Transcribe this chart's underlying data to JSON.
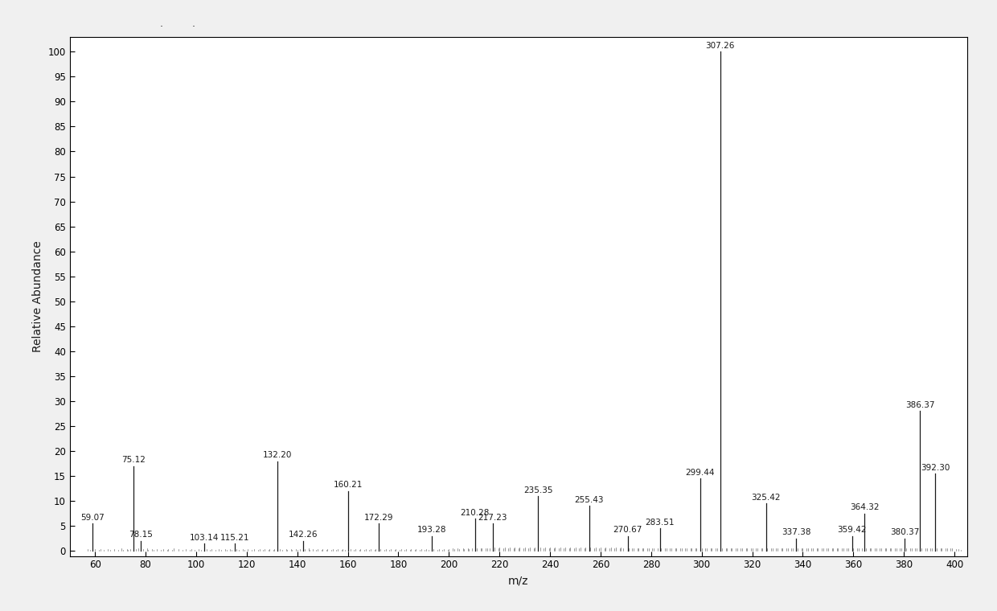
{
  "labeled_peaks": [
    {
      "mz": 59.07,
      "intensity": 5.5
    },
    {
      "mz": 75.12,
      "intensity": 17.0
    },
    {
      "mz": 78.15,
      "intensity": 2.0
    },
    {
      "mz": 103.14,
      "intensity": 1.5
    },
    {
      "mz": 115.21,
      "intensity": 1.5
    },
    {
      "mz": 132.2,
      "intensity": 18.0
    },
    {
      "mz": 142.26,
      "intensity": 2.0
    },
    {
      "mz": 160.21,
      "intensity": 12.0
    },
    {
      "mz": 172.29,
      "intensity": 5.5
    },
    {
      "mz": 193.28,
      "intensity": 3.0
    },
    {
      "mz": 210.28,
      "intensity": 6.5
    },
    {
      "mz": 217.23,
      "intensity": 5.5
    },
    {
      "mz": 235.35,
      "intensity": 11.0
    },
    {
      "mz": 255.43,
      "intensity": 9.0
    },
    {
      "mz": 270.67,
      "intensity": 3.0
    },
    {
      "mz": 283.51,
      "intensity": 4.5
    },
    {
      "mz": 299.44,
      "intensity": 14.5
    },
    {
      "mz": 307.26,
      "intensity": 100.0
    },
    {
      "mz": 325.42,
      "intensity": 9.5
    },
    {
      "mz": 337.38,
      "intensity": 2.5
    },
    {
      "mz": 359.42,
      "intensity": 3.0
    },
    {
      "mz": 364.32,
      "intensity": 7.5
    },
    {
      "mz": 380.37,
      "intensity": 2.5
    },
    {
      "mz": 386.37,
      "intensity": 28.0
    },
    {
      "mz": 392.3,
      "intensity": 15.5
    }
  ],
  "noise_peaks": [
    [
      57.0,
      0.4
    ],
    [
      58.0,
      0.3
    ],
    [
      60.0,
      0.4
    ],
    [
      61.5,
      0.3
    ],
    [
      62.0,
      0.4
    ],
    [
      63.5,
      0.3
    ],
    [
      65.0,
      0.4
    ],
    [
      66.0,
      0.3
    ],
    [
      67.5,
      0.4
    ],
    [
      69.0,
      0.3
    ],
    [
      70.5,
      0.5
    ],
    [
      71.0,
      0.3
    ],
    [
      72.5,
      0.4
    ],
    [
      73.0,
      0.3
    ],
    [
      74.0,
      0.4
    ],
    [
      76.0,
      0.4
    ],
    [
      77.0,
      0.5
    ],
    [
      79.0,
      0.4
    ],
    [
      80.5,
      0.5
    ],
    [
      81.0,
      0.3
    ],
    [
      82.5,
      0.4
    ],
    [
      83.0,
      0.3
    ],
    [
      84.5,
      0.4
    ],
    [
      86.0,
      0.3
    ],
    [
      87.0,
      0.4
    ],
    [
      88.5,
      0.3
    ],
    [
      89.0,
      0.4
    ],
    [
      90.5,
      0.3
    ],
    [
      91.0,
      0.5
    ],
    [
      93.0,
      0.4
    ],
    [
      94.5,
      0.3
    ],
    [
      96.0,
      0.4
    ],
    [
      97.5,
      0.3
    ],
    [
      98.0,
      0.4
    ],
    [
      99.5,
      0.3
    ],
    [
      101.0,
      0.4
    ],
    [
      102.0,
      0.3
    ],
    [
      104.0,
      0.4
    ],
    [
      105.5,
      0.3
    ],
    [
      106.0,
      0.4
    ],
    [
      107.5,
      0.3
    ],
    [
      109.0,
      0.4
    ],
    [
      110.0,
      0.3
    ],
    [
      111.5,
      0.4
    ],
    [
      112.0,
      0.3
    ],
    [
      113.5,
      0.4
    ],
    [
      114.0,
      0.3
    ],
    [
      116.0,
      0.4
    ],
    [
      117.0,
      0.3
    ],
    [
      118.5,
      0.4
    ],
    [
      119.0,
      0.3
    ],
    [
      120.5,
      0.4
    ],
    [
      122.0,
      0.3
    ],
    [
      123.0,
      0.4
    ],
    [
      124.5,
      0.3
    ],
    [
      125.0,
      0.4
    ],
    [
      126.5,
      0.3
    ],
    [
      127.0,
      0.4
    ],
    [
      128.5,
      0.3
    ],
    [
      129.0,
      0.4
    ],
    [
      130.5,
      0.3
    ],
    [
      131.0,
      0.4
    ],
    [
      133.0,
      0.4
    ],
    [
      134.0,
      0.3
    ],
    [
      135.5,
      0.4
    ],
    [
      136.0,
      0.3
    ],
    [
      137.5,
      0.4
    ],
    [
      138.0,
      0.3
    ],
    [
      139.5,
      0.4
    ],
    [
      140.0,
      0.3
    ],
    [
      141.0,
      0.4
    ],
    [
      143.0,
      0.4
    ],
    [
      144.5,
      0.5
    ],
    [
      145.0,
      0.3
    ],
    [
      146.0,
      0.4
    ],
    [
      147.5,
      0.3
    ],
    [
      148.0,
      0.4
    ],
    [
      149.5,
      0.3
    ],
    [
      150.0,
      0.4
    ],
    [
      151.5,
      0.3
    ],
    [
      152.0,
      0.4
    ],
    [
      153.5,
      0.3
    ],
    [
      154.0,
      0.4
    ],
    [
      155.5,
      0.3
    ],
    [
      156.0,
      0.4
    ],
    [
      157.5,
      0.3
    ],
    [
      158.0,
      0.4
    ],
    [
      159.0,
      0.3
    ],
    [
      161.0,
      0.4
    ],
    [
      162.5,
      0.3
    ],
    [
      163.0,
      0.4
    ],
    [
      164.5,
      0.3
    ],
    [
      165.0,
      0.4
    ],
    [
      166.5,
      0.3
    ],
    [
      167.0,
      0.4
    ],
    [
      168.5,
      0.3
    ],
    [
      169.0,
      0.4
    ],
    [
      170.5,
      0.3
    ],
    [
      171.0,
      0.4
    ],
    [
      173.0,
      0.4
    ],
    [
      174.5,
      0.3
    ],
    [
      175.0,
      0.4
    ],
    [
      176.5,
      0.3
    ],
    [
      177.0,
      0.4
    ],
    [
      178.5,
      0.3
    ],
    [
      179.0,
      0.4
    ],
    [
      180.5,
      0.3
    ],
    [
      181.0,
      0.4
    ],
    [
      182.5,
      0.3
    ],
    [
      183.0,
      0.4
    ],
    [
      184.5,
      0.3
    ],
    [
      185.0,
      0.4
    ],
    [
      186.5,
      0.3
    ],
    [
      187.0,
      0.4
    ],
    [
      188.5,
      0.3
    ],
    [
      189.0,
      0.4
    ],
    [
      190.5,
      0.3
    ],
    [
      191.0,
      0.4
    ],
    [
      192.0,
      0.3
    ],
    [
      194.0,
      0.4
    ],
    [
      195.5,
      0.3
    ],
    [
      196.0,
      0.4
    ],
    [
      197.5,
      0.3
    ],
    [
      198.0,
      0.4
    ],
    [
      199.5,
      0.3
    ],
    [
      200.0,
      0.4
    ],
    [
      201.5,
      0.5
    ],
    [
      202.0,
      0.4
    ],
    [
      203.5,
      0.5
    ],
    [
      204.0,
      0.4
    ],
    [
      205.5,
      0.5
    ],
    [
      206.0,
      0.4
    ],
    [
      207.5,
      0.5
    ],
    [
      208.0,
      0.4
    ],
    [
      209.0,
      0.5
    ],
    [
      211.0,
      0.6
    ],
    [
      212.5,
      0.5
    ],
    [
      213.0,
      0.6
    ],
    [
      214.5,
      0.5
    ],
    [
      215.0,
      0.6
    ],
    [
      216.0,
      0.5
    ],
    [
      218.0,
      0.7
    ],
    [
      219.5,
      0.6
    ],
    [
      220.0,
      0.7
    ],
    [
      221.5,
      0.6
    ],
    [
      222.0,
      0.7
    ],
    [
      223.5,
      0.6
    ],
    [
      224.0,
      0.7
    ],
    [
      225.5,
      0.6
    ],
    [
      226.0,
      0.7
    ],
    [
      227.5,
      0.6
    ],
    [
      228.0,
      0.7
    ],
    [
      229.5,
      0.6
    ],
    [
      230.0,
      0.7
    ],
    [
      231.5,
      0.6
    ],
    [
      232.0,
      0.7
    ],
    [
      233.5,
      0.6
    ],
    [
      234.0,
      0.7
    ],
    [
      236.0,
      0.7
    ],
    [
      237.5,
      0.6
    ],
    [
      238.0,
      0.7
    ],
    [
      239.5,
      0.6
    ],
    [
      240.0,
      0.7
    ],
    [
      241.5,
      0.6
    ],
    [
      242.0,
      0.7
    ],
    [
      243.5,
      0.6
    ],
    [
      244.0,
      0.7
    ],
    [
      245.5,
      0.6
    ],
    [
      246.0,
      0.7
    ],
    [
      247.5,
      0.6
    ],
    [
      248.0,
      0.7
    ],
    [
      249.5,
      0.6
    ],
    [
      250.0,
      0.7
    ],
    [
      251.5,
      0.6
    ],
    [
      252.0,
      0.7
    ],
    [
      253.5,
      0.6
    ],
    [
      254.0,
      0.7
    ],
    [
      256.0,
      0.7
    ],
    [
      257.5,
      0.6
    ],
    [
      258.0,
      0.7
    ],
    [
      259.5,
      0.6
    ],
    [
      260.0,
      0.7
    ],
    [
      261.5,
      0.6
    ],
    [
      262.0,
      0.7
    ],
    [
      263.5,
      0.6
    ],
    [
      264.0,
      0.7
    ],
    [
      265.5,
      0.6
    ],
    [
      266.0,
      0.7
    ],
    [
      267.5,
      0.6
    ],
    [
      268.0,
      0.7
    ],
    [
      269.0,
      0.6
    ],
    [
      271.0,
      0.6
    ],
    [
      272.5,
      0.5
    ],
    [
      273.0,
      0.6
    ],
    [
      274.5,
      0.5
    ],
    [
      275.0,
      0.6
    ],
    [
      276.5,
      0.5
    ],
    [
      277.0,
      0.6
    ],
    [
      278.5,
      0.5
    ],
    [
      279.0,
      0.6
    ],
    [
      280.5,
      0.5
    ],
    [
      281.0,
      0.6
    ],
    [
      282.5,
      0.5
    ],
    [
      284.0,
      0.6
    ],
    [
      285.5,
      0.5
    ],
    [
      286.0,
      0.6
    ],
    [
      287.5,
      0.5
    ],
    [
      288.0,
      0.6
    ],
    [
      289.5,
      0.5
    ],
    [
      290.0,
      0.6
    ],
    [
      291.5,
      0.5
    ],
    [
      292.0,
      0.6
    ],
    [
      293.5,
      0.5
    ],
    [
      294.0,
      0.6
    ],
    [
      295.5,
      0.5
    ],
    [
      296.0,
      0.6
    ],
    [
      297.5,
      0.5
    ],
    [
      298.0,
      0.6
    ],
    [
      300.0,
      0.6
    ],
    [
      301.5,
      0.5
    ],
    [
      302.0,
      0.6
    ],
    [
      303.5,
      0.5
    ],
    [
      304.0,
      0.6
    ],
    [
      305.5,
      0.5
    ],
    [
      306.0,
      0.6
    ],
    [
      308.0,
      0.6
    ],
    [
      309.5,
      0.5
    ],
    [
      310.0,
      0.6
    ],
    [
      311.5,
      0.5
    ],
    [
      312.0,
      0.6
    ],
    [
      313.5,
      0.5
    ],
    [
      314.0,
      0.6
    ],
    [
      315.5,
      0.5
    ],
    [
      316.0,
      0.6
    ],
    [
      317.5,
      0.5
    ],
    [
      318.0,
      0.6
    ],
    [
      319.5,
      0.5
    ],
    [
      320.0,
      0.6
    ],
    [
      321.5,
      0.5
    ],
    [
      322.0,
      0.6
    ],
    [
      323.5,
      0.5
    ],
    [
      324.0,
      0.6
    ],
    [
      326.0,
      0.5
    ],
    [
      327.5,
      0.5
    ],
    [
      328.0,
      0.6
    ],
    [
      329.5,
      0.5
    ],
    [
      330.0,
      0.6
    ],
    [
      331.5,
      0.5
    ],
    [
      332.0,
      0.6
    ],
    [
      333.5,
      0.5
    ],
    [
      334.0,
      0.6
    ],
    [
      335.5,
      0.5
    ],
    [
      336.0,
      0.6
    ],
    [
      338.0,
      0.5
    ],
    [
      339.5,
      0.5
    ],
    [
      340.0,
      0.6
    ],
    [
      341.5,
      0.5
    ],
    [
      342.0,
      0.6
    ],
    [
      343.5,
      0.5
    ],
    [
      344.0,
      0.6
    ],
    [
      345.5,
      0.5
    ],
    [
      346.0,
      0.6
    ],
    [
      347.5,
      0.5
    ],
    [
      348.0,
      0.6
    ],
    [
      349.5,
      0.5
    ],
    [
      350.0,
      0.6
    ],
    [
      351.5,
      0.5
    ],
    [
      352.0,
      0.6
    ],
    [
      353.5,
      0.5
    ],
    [
      354.0,
      0.6
    ],
    [
      355.5,
      0.5
    ],
    [
      356.0,
      0.6
    ],
    [
      357.5,
      0.5
    ],
    [
      358.0,
      0.6
    ],
    [
      360.0,
      0.5
    ],
    [
      361.5,
      0.5
    ],
    [
      362.0,
      0.6
    ],
    [
      363.5,
      0.5
    ],
    [
      365.0,
      0.5
    ],
    [
      366.5,
      0.5
    ],
    [
      367.0,
      0.6
    ],
    [
      368.5,
      0.5
    ],
    [
      369.0,
      0.6
    ],
    [
      370.5,
      0.5
    ],
    [
      371.0,
      0.6
    ],
    [
      372.5,
      0.5
    ],
    [
      373.0,
      0.6
    ],
    [
      374.5,
      0.5
    ],
    [
      375.0,
      0.6
    ],
    [
      376.5,
      0.5
    ],
    [
      377.0,
      0.6
    ],
    [
      378.5,
      0.5
    ],
    [
      379.0,
      0.6
    ],
    [
      381.0,
      0.5
    ],
    [
      382.5,
      0.5
    ],
    [
      383.0,
      0.6
    ],
    [
      384.5,
      0.5
    ],
    [
      385.0,
      0.6
    ],
    [
      387.0,
      0.5
    ],
    [
      388.5,
      0.5
    ],
    [
      389.0,
      0.6
    ],
    [
      390.5,
      0.5
    ],
    [
      391.0,
      0.6
    ],
    [
      393.0,
      0.5
    ],
    [
      394.5,
      0.5
    ],
    [
      395.0,
      0.6
    ],
    [
      396.5,
      0.5
    ],
    [
      397.0,
      0.6
    ],
    [
      398.5,
      0.5
    ],
    [
      399.0,
      0.6
    ],
    [
      400.5,
      0.4
    ],
    [
      401.5,
      0.4
    ],
    [
      402.5,
      0.3
    ]
  ],
  "xlabel": "m/z",
  "ylabel": "Relative Abundance",
  "xlim": [
    50,
    405
  ],
  "ylim": [
    -1,
    103
  ],
  "xticks": [
    60,
    80,
    100,
    120,
    140,
    160,
    180,
    200,
    220,
    240,
    260,
    280,
    300,
    320,
    340,
    360,
    380,
    400
  ],
  "yticks": [
    0,
    5,
    10,
    15,
    20,
    25,
    30,
    35,
    40,
    45,
    50,
    55,
    60,
    65,
    70,
    75,
    80,
    85,
    90,
    95,
    100
  ],
  "background_color": "#f0f0f0",
  "plot_bg_color": "#ffffff",
  "line_color": "#1a1a1a",
  "font_color": "#1a1a1a",
  "label_fontsize": 7.5,
  "axis_label_fontsize": 10,
  "tick_fontsize": 8.5,
  "title_dots": ".         ."
}
